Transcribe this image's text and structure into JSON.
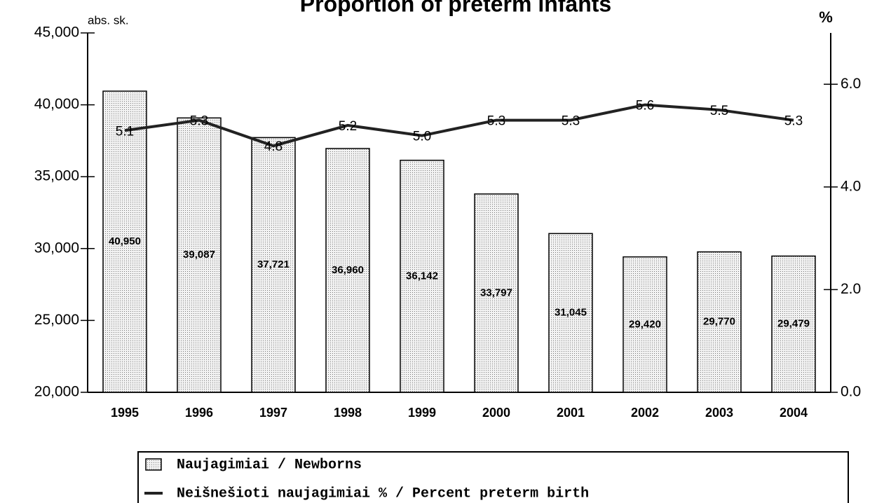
{
  "chart_data": {
    "type": "bar_line",
    "title": "Proportion of preterm infants",
    "y_label": "abs. sk.",
    "y2_label": "%",
    "categories": [
      "1995",
      "1996",
      "1997",
      "1998",
      "1999",
      "2000",
      "2001",
      "2002",
      "2003",
      "2004"
    ],
    "series": [
      {
        "name": "Naujagimiai / Newborns",
        "type": "bar",
        "color": "#d9d9d9",
        "values": [
          40950,
          39087,
          37721,
          36960,
          36142,
          33797,
          31045,
          29420,
          29770,
          29479
        ],
        "value_labels": [
          "40,950",
          "39,087",
          "37,721",
          "36,960",
          "36,142",
          "33,797",
          "31,045",
          "29,420",
          "29,770",
          "29,479"
        ]
      },
      {
        "name": "Neišnešioti naujagimiai % / Percent preterm birth",
        "type": "line",
        "color": "#222222",
        "axis": "y2",
        "values": [
          5.1,
          5.3,
          4.8,
          5.2,
          5.0,
          5.3,
          5.3,
          5.6,
          5.5,
          5.3
        ],
        "value_labels": [
          "5.1",
          "5.3",
          "4.8",
          "5.2",
          "5.0",
          "5.3",
          "5.3",
          "5.6",
          "5.5",
          "5.3"
        ]
      }
    ],
    "ylim": [
      20000,
      45000
    ],
    "yticks": [
      {
        "value": 20000,
        "label": "20,000"
      },
      {
        "value": 25000,
        "label": "25,000"
      },
      {
        "value": 30000,
        "label": "30,000"
      },
      {
        "value": 35000,
        "label": "35,000"
      },
      {
        "value": 40000,
        "label": "40,000"
      },
      {
        "value": 45000,
        "label": "45,000"
      }
    ],
    "y2lim": [
      0,
      7
    ],
    "y2ticks": [
      {
        "value": 0,
        "label": "0.0"
      },
      {
        "value": 2,
        "label": "2.0"
      },
      {
        "value": 4,
        "label": "4.0"
      },
      {
        "value": 6,
        "label": "6.0"
      }
    ],
    "grid": false,
    "legend": "bottom"
  }
}
